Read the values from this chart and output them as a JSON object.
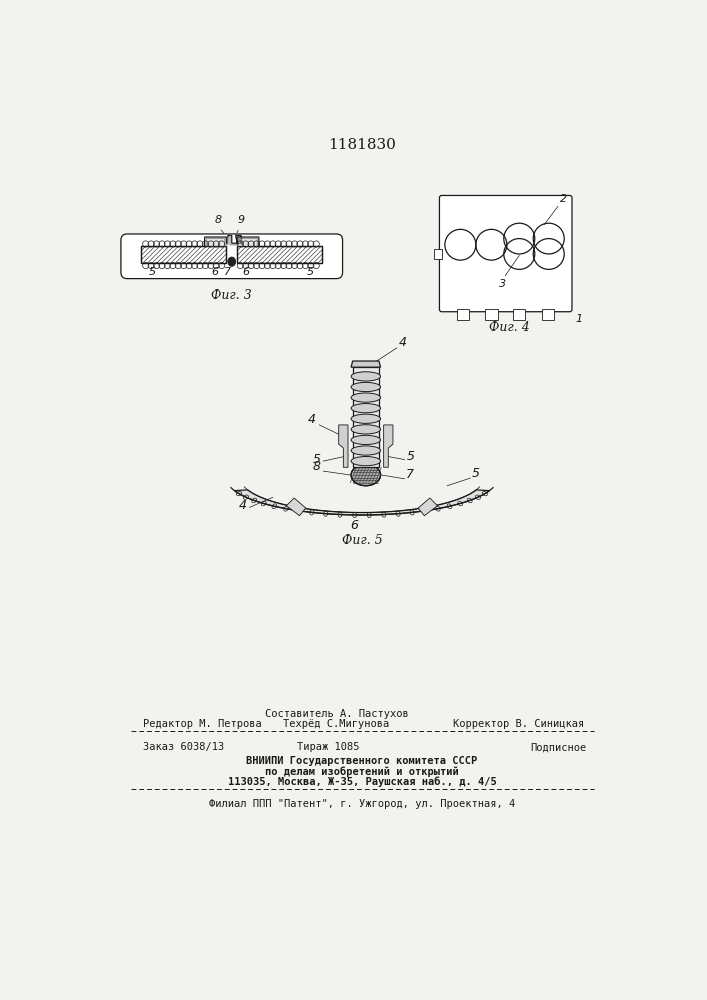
{
  "patent_number": "1181830",
  "bg_color": "#f2f2ee",
  "line_color": "#1a1a1a",
  "fig3_caption": "Фиг. 3",
  "fig4_caption": "Фиг. 4",
  "fig5_caption": "Фиг. 5",
  "footer_editor": "Редактор М. Петрова",
  "footer_composer_label": "Составитель А. Пастухов",
  "footer_tech_label": "Техрёд С.Мигунова",
  "footer_corrector": "Корректор В. Синицкая",
  "footer_order": "Заказ 6038/13",
  "footer_tirazh": "Тираж 1085",
  "footer_podpisnoe": "Подписное",
  "footer_vnipi1": "ВНИИПИ Государственного комитета СССР",
  "footer_vnipi2": "по делам изобретений и открытий",
  "footer_vnipi3": "113035, Москва, Ж-35, Раушская наб., д. 4/5",
  "footer_filial": "Филиал ППП \"Патент\", г. Ужгород, ул. Проектная, 4"
}
